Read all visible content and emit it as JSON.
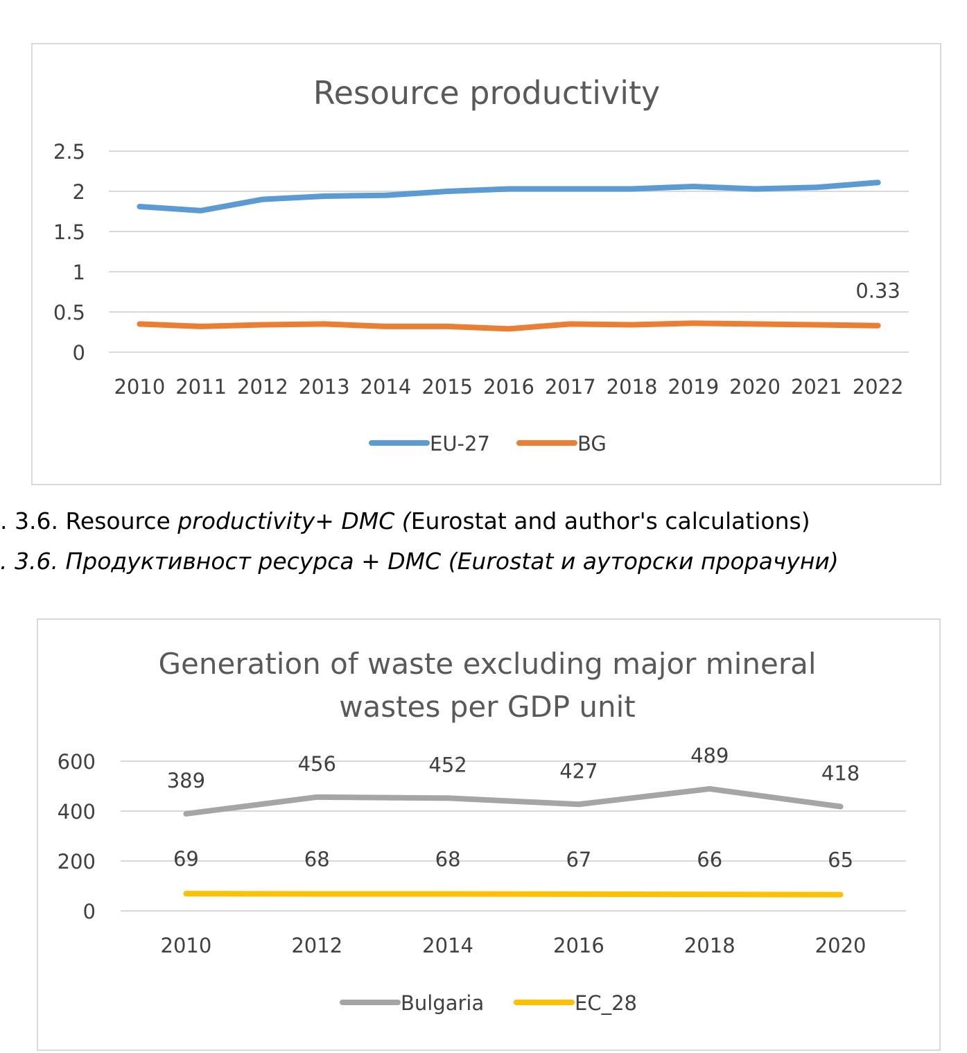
{
  "captions": {
    "line1_prefix": ". 3.6. Resource ",
    "line1_italic": "productivity+ DMC (",
    "line1_suffix": "Eurostat and author's calculations)",
    "line2": ". 3.6. Продуктивност ресурса + DMC (Eurostat и ауторски прорачуни)"
  },
  "chart_data": [
    {
      "type": "line",
      "title": "Resource productivity",
      "categories": [
        "2010",
        "2011",
        "2012",
        "2013",
        "2014",
        "2015",
        "2016",
        "2017",
        "2018",
        "2019",
        "2020",
        "2021",
        "2022"
      ],
      "ylim": [
        0,
        2.5
      ],
      "yticks": [
        "0",
        "0.5",
        "1",
        "1.5",
        "2",
        "2.5"
      ],
      "grid": true,
      "legend": "bottom",
      "series": [
        {
          "name": "EU-27",
          "color": "#5b9bd5",
          "values": [
            1.81,
            1.76,
            1.9,
            1.94,
            1.95,
            2.0,
            2.03,
            2.03,
            2.03,
            2.06,
            2.03,
            2.05,
            2.11
          ]
        },
        {
          "name": "BG",
          "color": "#ed7d31",
          "values": [
            0.35,
            0.32,
            0.34,
            0.35,
            0.32,
            0.32,
            0.29,
            0.35,
            0.34,
            0.36,
            0.35,
            0.34,
            0.33
          ],
          "data_labels": {
            "12": "0.33"
          }
        }
      ]
    },
    {
      "type": "line",
      "title": [
        "Generation of waste excluding major mineral",
        "wastes per GDP unit"
      ],
      "categories": [
        "2010",
        "2012",
        "2014",
        "2016",
        "2018",
        "2020"
      ],
      "ylim": [
        0,
        600
      ],
      "yticks": [
        "0",
        "200",
        "400",
        "600"
      ],
      "grid": true,
      "legend": "bottom",
      "series": [
        {
          "name": "Bulgaria",
          "color": "#a5a5a5",
          "values": [
            389,
            456,
            452,
            427,
            489,
            418
          ]
        },
        {
          "name": "EC_28",
          "color": "#ffc000",
          "values": [
            69,
            68,
            68,
            67,
            66,
            65
          ]
        }
      ]
    }
  ]
}
